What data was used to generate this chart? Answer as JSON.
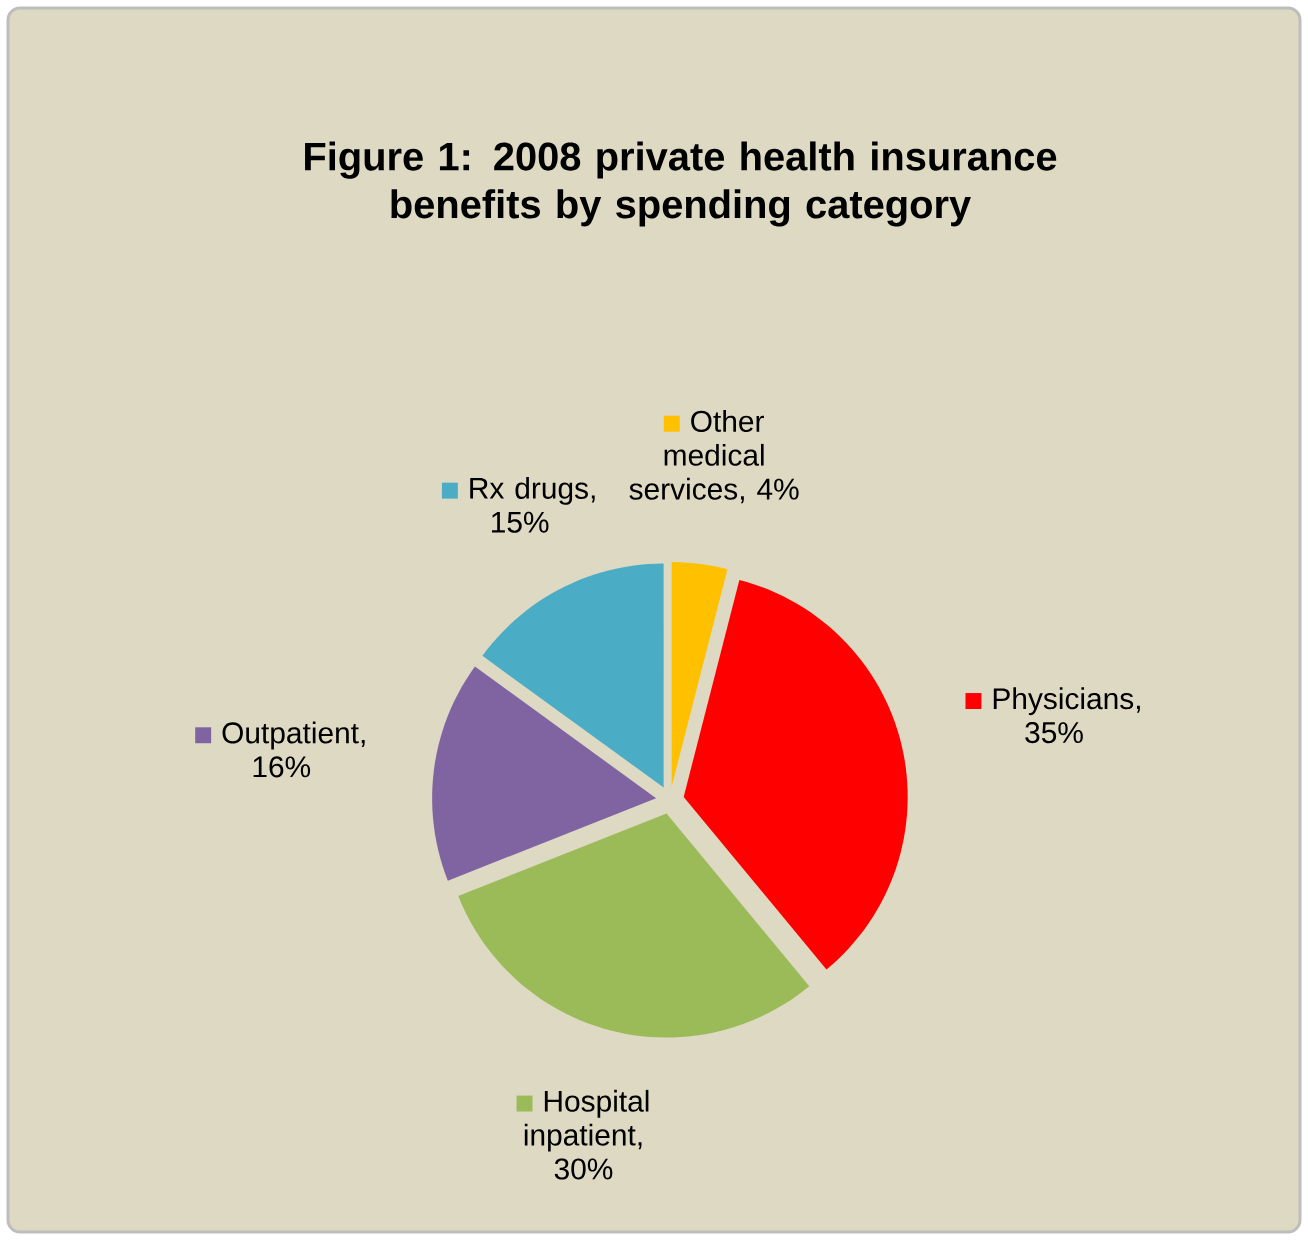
{
  "chart_data": {
    "type": "pie",
    "title": "Figure 1:  2008 private health insurance benefits by spending category",
    "categories": [
      "Other medical services",
      "Physicians",
      "Hospital inpatient",
      "Outpatient",
      "Rx drugs"
    ],
    "values": [
      4,
      35,
      30,
      16,
      15
    ],
    "value_labels": [
      ", 4%",
      ", 35%",
      ", 30%",
      ", 16%",
      ", 15%"
    ],
    "colors": [
      "#ffc000",
      "#ff0000",
      "#9bbb59",
      "#8064a2",
      "#4bacc6"
    ],
    "legend": "right"
  }
}
